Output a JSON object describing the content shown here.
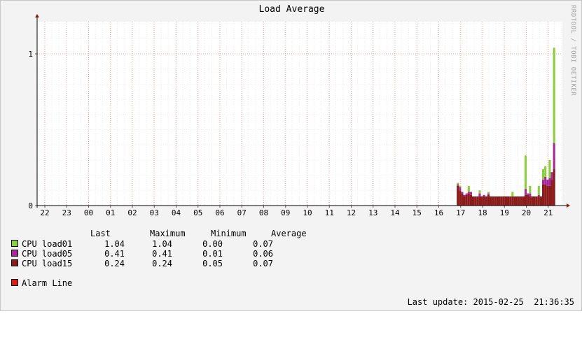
{
  "title": "Load Average",
  "watermark": "RRDTOOL / TOBI OETIKER",
  "chart_data": {
    "type": "bar",
    "stacked": true,
    "ylim": [
      0,
      1.0
    ],
    "yticks": [
      {
        "value": 0,
        "label": "0"
      },
      {
        "value": 1,
        "label": "1"
      }
    ],
    "xticks": [
      "22",
      "23",
      "00",
      "01",
      "02",
      "03",
      "04",
      "05",
      "06",
      "07",
      "08",
      "09",
      "10",
      "11",
      "12",
      "13",
      "14",
      "15",
      "16",
      "17",
      "18",
      "19",
      "20",
      "21"
    ],
    "grid": true,
    "series": [
      {
        "name": "CPU load15",
        "color": "#8b1a1a"
      },
      {
        "name": "CPU load05",
        "color": "#a6289a"
      },
      {
        "name": "CPU load01",
        "color": "#8ccf3c"
      }
    ],
    "bars": [
      {
        "x": 16.87,
        "v": [
          0.13,
          0.01,
          0.01
        ]
      },
      {
        "x": 16.97,
        "v": [
          0.1,
          0.02,
          0.01
        ]
      },
      {
        "x": 17.07,
        "v": [
          0.08,
          0.01,
          0.0
        ]
      },
      {
        "x": 17.17,
        "v": [
          0.06,
          0.01,
          0.0
        ]
      },
      {
        "x": 17.27,
        "v": [
          0.07,
          0.01,
          0.0
        ]
      },
      {
        "x": 17.37,
        "v": [
          0.08,
          0.01,
          0.04
        ]
      },
      {
        "x": 17.47,
        "v": [
          0.07,
          0.02,
          0.0
        ]
      },
      {
        "x": 17.57,
        "v": [
          0.06,
          0.0,
          0.0
        ]
      },
      {
        "x": 17.67,
        "v": [
          0.06,
          0.0,
          0.0
        ]
      },
      {
        "x": 17.77,
        "v": [
          0.06,
          0.0,
          0.0
        ]
      },
      {
        "x": 17.87,
        "v": [
          0.06,
          0.02,
          0.02
        ]
      },
      {
        "x": 17.97,
        "v": [
          0.06,
          0.0,
          0.0
        ]
      },
      {
        "x": 18.07,
        "v": [
          0.06,
          0.01,
          0.0
        ]
      },
      {
        "x": 18.17,
        "v": [
          0.06,
          0.0,
          0.0
        ]
      },
      {
        "x": 18.27,
        "v": [
          0.07,
          0.01,
          0.01
        ]
      },
      {
        "x": 18.37,
        "v": [
          0.06,
          0.0,
          0.0
        ]
      },
      {
        "x": 18.47,
        "v": [
          0.06,
          0.0,
          0.0
        ]
      },
      {
        "x": 18.57,
        "v": [
          0.06,
          0.0,
          0.0
        ]
      },
      {
        "x": 18.67,
        "v": [
          0.06,
          0.0,
          0.0
        ]
      },
      {
        "x": 18.77,
        "v": [
          0.06,
          0.0,
          0.0
        ]
      },
      {
        "x": 18.87,
        "v": [
          0.06,
          0.0,
          0.0
        ]
      },
      {
        "x": 18.97,
        "v": [
          0.06,
          0.0,
          0.0
        ]
      },
      {
        "x": 19.07,
        "v": [
          0.06,
          0.0,
          0.0
        ]
      },
      {
        "x": 19.17,
        "v": [
          0.06,
          0.0,
          0.0
        ]
      },
      {
        "x": 19.27,
        "v": [
          0.06,
          0.0,
          0.0
        ]
      },
      {
        "x": 19.37,
        "v": [
          0.06,
          0.0,
          0.03
        ]
      },
      {
        "x": 19.47,
        "v": [
          0.06,
          0.0,
          0.0
        ]
      },
      {
        "x": 19.57,
        "v": [
          0.06,
          0.0,
          0.0
        ]
      },
      {
        "x": 19.67,
        "v": [
          0.06,
          0.0,
          0.0
        ]
      },
      {
        "x": 19.77,
        "v": [
          0.06,
          0.0,
          0.0
        ]
      },
      {
        "x": 19.87,
        "v": [
          0.06,
          0.0,
          0.0
        ]
      },
      {
        "x": 19.97,
        "v": [
          0.07,
          0.04,
          0.22
        ]
      },
      {
        "x": 20.07,
        "v": [
          0.07,
          0.01,
          0.0
        ]
      },
      {
        "x": 20.17,
        "v": [
          0.06,
          0.02,
          0.05
        ]
      },
      {
        "x": 20.27,
        "v": [
          0.06,
          0.0,
          0.0
        ]
      },
      {
        "x": 20.37,
        "v": [
          0.06,
          0.0,
          0.0
        ]
      },
      {
        "x": 20.47,
        "v": [
          0.06,
          0.0,
          0.0
        ]
      },
      {
        "x": 20.57,
        "v": [
          0.06,
          0.01,
          0.06
        ]
      },
      {
        "x": 20.67,
        "v": [
          0.06,
          0.0,
          0.0
        ]
      },
      {
        "x": 20.77,
        "v": [
          0.14,
          0.03,
          0.07
        ]
      },
      {
        "x": 20.87,
        "v": [
          0.14,
          0.05,
          0.07
        ]
      },
      {
        "x": 20.97,
        "v": [
          0.13,
          0.04,
          0.0
        ]
      },
      {
        "x": 21.07,
        "v": [
          0.13,
          0.05,
          0.12
        ]
      },
      {
        "x": 21.17,
        "v": [
          0.17,
          0.05,
          0.0
        ]
      },
      {
        "x": 21.27,
        "v": [
          0.24,
          0.17,
          0.63
        ]
      }
    ]
  },
  "legend": {
    "headers": {
      "last": "Last",
      "max": "Maximum",
      "min": "Minimum",
      "avg": "Average"
    },
    "rows": [
      {
        "label": "CPU load01",
        "color": "#8ccf3c",
        "last": "1.04",
        "max": "1.04",
        "min": "0.00",
        "avg": "0.07"
      },
      {
        "label": "CPU load05",
        "color": "#a6289a",
        "last": "0.41",
        "max": "0.41",
        "min": "0.01",
        "avg": "0.06"
      },
      {
        "label": "CPU load15",
        "color": "#8b1a1a",
        "last": "0.24",
        "max": "0.24",
        "min": "0.05",
        "avg": "0.07"
      }
    ],
    "alarm": {
      "label": "Alarm Line",
      "color": "#e11919"
    }
  },
  "last_update": "Last update: 2015-02-25  21:36:35"
}
